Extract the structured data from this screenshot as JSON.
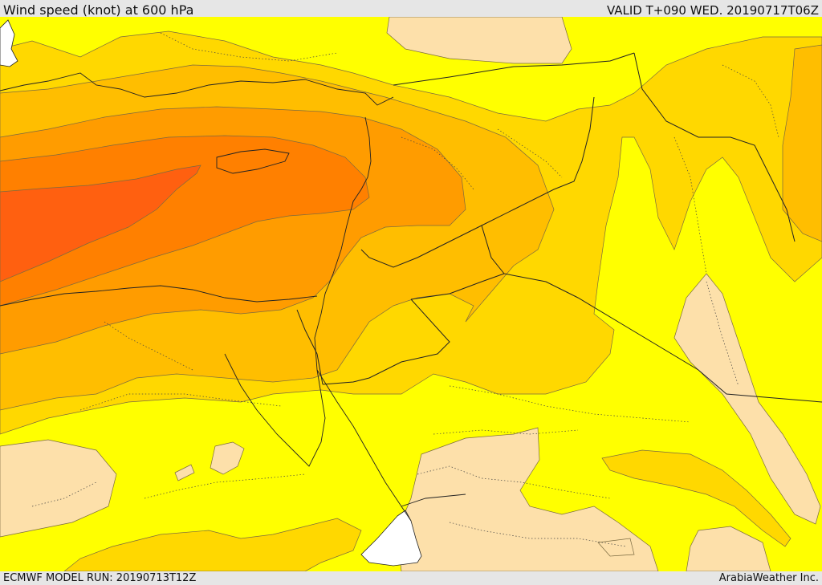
{
  "header": {
    "title": "Wind speed (knot) at 600 hPa",
    "valid": "VALID T+090 WED. 20190717T06Z"
  },
  "footer": {
    "run": "ECMWF MODEL RUN: 20190713T12Z",
    "credit": "ArabiaWeather Inc."
  },
  "map": {
    "variable": "wind speed",
    "level": "600 hPa",
    "colors": {
      "calm": "#fde0aa",
      "level1": "#ffff00",
      "level2": "#ffd800",
      "level3": "#ffbe00",
      "level4": "#ff9c00",
      "level5": "#ff8000",
      "level6": "#ff6010",
      "sea_gap": "#ffffff",
      "boundary": "#222222"
    }
  }
}
